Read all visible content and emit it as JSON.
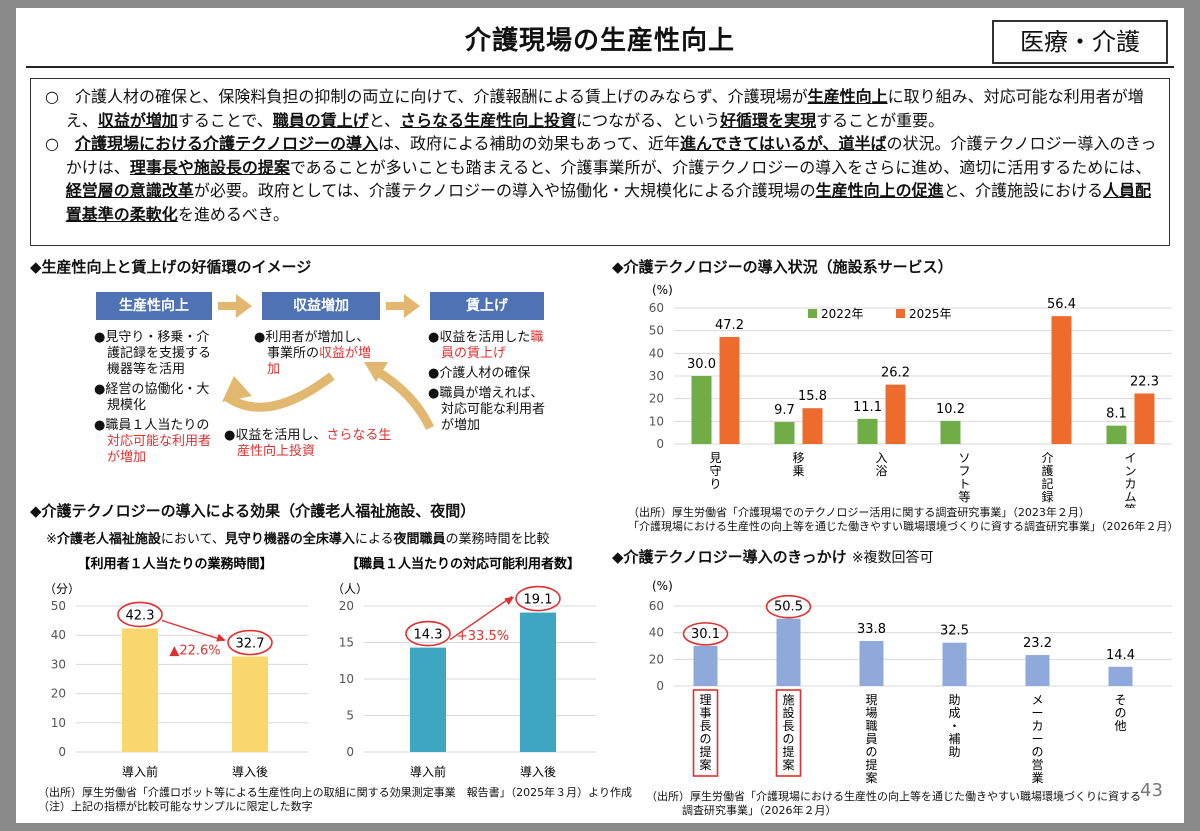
{
  "header": {
    "title": "介護現場の生産性向上",
    "tag": "医療・介護"
  },
  "summary": {
    "p1": {
      "t1": "○　介護人材の確保と、保険料負担の抑制の両立に向けて、介護報酬による賃上げのみならず、介護現場が",
      "b1": "生産性向上",
      "t2": "に取り組み、対応可能な利用者が増え、",
      "b2": "収益が増加",
      "t3": "することで、",
      "b3": "職員の賃上げ",
      "t4": "と、",
      "b4": "さらなる生産性向上投資",
      "t5": "につながる、という",
      "b5": "好循環を実現",
      "t6": "することが重要。"
    },
    "p2": {
      "t1": "○　",
      "b1": "介護現場における介護テクノロジーの導入",
      "t2": "は、政府による補助の効果もあって、近年",
      "b2": "進んできてはいるが、道半ば",
      "t3": "の状況。介護テクノロジー導入のきっかけは、",
      "b3": "理事長や施設長の提案",
      "t4": "であることが多いことも踏まえると、介護事業所が、介護テクノロジーの導入をさらに進め、適切に活用するためには、",
      "b4": "経営層の意識改革",
      "t5": "が必要。政府としては、介護テクノロジーの導入や協働化・大規模化による介護現場の",
      "b5": "生産性向上の促進",
      "t6": "と、介護施設における",
      "b6": "人員配置基準の柔軟化",
      "t7": "を進めるべき。"
    }
  },
  "cycle": {
    "heading": "◆生産性向上と賃上げの好循環のイメージ",
    "boxes": [
      "生産性向上",
      "収益増加",
      "賃上げ"
    ],
    "col1": [
      {
        "text": "●見守り・移乗・介護記録を支援する機器等を活用",
        "red": ""
      },
      {
        "text": "●経営の協働化・大規模化",
        "red": ""
      },
      {
        "text": "●職員１人当たりの",
        "red": "対応可能な利用者が増加"
      }
    ],
    "col2": [
      {
        "text": "●利用者が増加し、事業所の",
        "red": "収益が増加"
      }
    ],
    "col3": [
      {
        "text": "●収益を活用した",
        "red": "職員の賃上げ"
      },
      {
        "text": "●介護人材の確保",
        "red": ""
      },
      {
        "text": "●職員が増えれば、対応可能な利用者が増加",
        "red": ""
      }
    ],
    "bottom": {
      "text": "●収益を活用し、",
      "red": "さらなる生産性向上投資"
    }
  },
  "effect": {
    "heading": "◆介護テクノロジーの導入による効果（介護老人福祉施設、夜間）",
    "note": {
      "t1": "※",
      "b1": "介護老人福祉施設",
      "t2": "において、",
      "b2": "見守り機器の全床導入",
      "t3": "による",
      "b3": "夜間職員",
      "t4": "の業務時間を比較"
    },
    "source1": "（出所）厚生労働省「介護ロボット等による生産性向上の取組に関する効果測定事業　報告書」（2025年３月）より作成",
    "source2": "（注）上記の指標が比較可能なサンプルに限定した数字"
  },
  "adoption": {
    "heading_main": "◆介護テクノロジーの導入状況（施設系サービス）",
    "source1": "（出所）厚生労働省「介護現場でのテクノロジー活用に関する調査研究事業」（2023年２月）",
    "source2": "「介護現場における生産性の向上等を通じた働きやすい職場環境づくりに資する調査研究事業」（2026年２月）"
  },
  "trigger": {
    "heading_main": "◆介護テクノロジー導入のきっかけ",
    "heading_sub": "※複数回答可",
    "source1": "（出所）厚生労働省「介護現場における生産性の向上等を通じた働きやすい職場環境づくりに資する",
    "source2": "調査研究事業」（2026年２月）"
  },
  "page_number": "43",
  "colors": {
    "box_blue": "#4f72b5",
    "arrow": "#e2b870",
    "red": "#e03030",
    "green": "#70ad47",
    "orange": "#ed6c2d",
    "yellow": "#f9d76e",
    "teal": "#3ea6c1",
    "lightblue": "#8fa9db"
  },
  "chart_data": [
    {
      "type": "bar",
      "title": "【利用者１人当たりの業務時間】",
      "ylabel": "（分）",
      "categories": [
        "導入前",
        "導入後"
      ],
      "values": [
        42.3,
        32.7
      ],
      "ylim": [
        0,
        50
      ],
      "yticks": [
        0,
        10,
        20,
        30,
        40,
        50
      ],
      "annotation": "▲22.6%",
      "color": "#f9d76e"
    },
    {
      "type": "bar",
      "title": "【職員１人当たりの対応可能利用者数】",
      "ylabel": "（人）",
      "categories": [
        "導入前",
        "導入後"
      ],
      "values": [
        14.3,
        19.1
      ],
      "ylim": [
        0,
        20
      ],
      "yticks": [
        0,
        5,
        10,
        15,
        20
      ],
      "annotation": "+33.5%",
      "color": "#3ea6c1"
    },
    {
      "type": "bar",
      "ylabel": "(%)",
      "categories": [
        "見守り",
        "移乗",
        "入浴",
        "ソフト等",
        "介護記録",
        "インカム等"
      ],
      "cat_lines": [
        [
          "見",
          "守",
          "り"
        ],
        [
          "移",
          "乗"
        ],
        [
          "入",
          "浴"
        ],
        [
          "ソ",
          "フ",
          "ト",
          "等"
        ],
        [
          "介",
          "護",
          "記",
          "録"
        ],
        [
          "イ",
          "ン",
          "カ",
          "ム",
          "等"
        ]
      ],
      "series": [
        {
          "name": "2022年",
          "values": [
            30.0,
            9.7,
            11.1,
            10.2,
            null,
            8.1
          ],
          "value_labels": [
            "30.0",
            "9.7",
            "11.1",
            "10.2",
            "",
            "8.1"
          ],
          "color": "#70ad47"
        },
        {
          "name": "2025年",
          "values": [
            47.2,
            15.8,
            26.2,
            null,
            56.4,
            22.3
          ],
          "value_labels": [
            "47.2",
            "15.8",
            "26.2",
            "",
            "56.4",
            "22.3"
          ],
          "color": "#ed6c2d"
        }
      ],
      "ylim": [
        0,
        60
      ],
      "yticks": [
        0,
        10,
        20,
        30,
        40,
        50,
        60
      ],
      "legend": "top-left"
    },
    {
      "type": "bar",
      "ylabel": "(%)",
      "categories": [
        "理事長の提案",
        "施設長の提案",
        "現場職員の提案",
        "助成・補助",
        "メーカーの営業",
        "その他"
      ],
      "cat_lines": [
        [
          "理",
          "事",
          "長",
          "の",
          "提",
          "案"
        ],
        [
          "施",
          "設",
          "長",
          "の",
          "提",
          "案"
        ],
        [
          "現",
          "場",
          "職",
          "員",
          "の",
          "提",
          "案"
        ],
        [
          "助",
          "成",
          "・",
          "補",
          "助"
        ],
        [
          "メ",
          "ー",
          "カ",
          "ー",
          "の",
          "営",
          "業"
        ],
        [
          "そ",
          "の",
          "他"
        ]
      ],
      "values": [
        30.1,
        50.5,
        33.8,
        32.5,
        23.2,
        14.4
      ],
      "value_labels": [
        "30.1",
        "50.5",
        "33.8",
        "32.5",
        "23.2",
        "14.4"
      ],
      "highlighted": [
        "理事長の提案",
        "施設長の提案"
      ],
      "ylim": [
        0,
        60
      ],
      "yticks": [
        0,
        20,
        40,
        60
      ],
      "color": "#8fa9db"
    }
  ]
}
